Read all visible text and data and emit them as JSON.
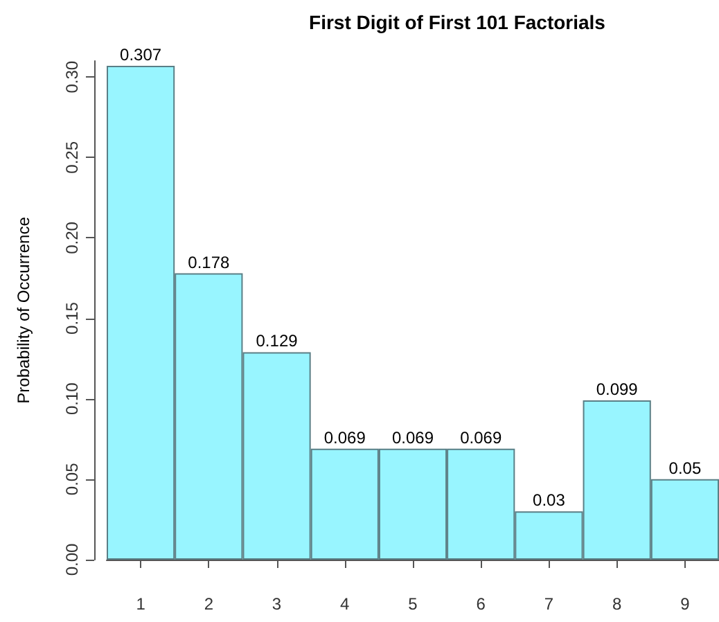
{
  "chart_data": {
    "type": "bar",
    "title": "First Digit of First 101 Factorials",
    "ylabel": "Probability of Occurrence",
    "categories": [
      "1",
      "2",
      "3",
      "4",
      "5",
      "6",
      "7",
      "8",
      "9"
    ],
    "values": [
      0.307,
      0.178,
      0.129,
      0.069,
      0.069,
      0.069,
      0.03,
      0.099,
      0.05
    ],
    "color": "#98f5ff",
    "ylim": [
      0,
      0.31
    ],
    "yticks": [
      {
        "value": 0,
        "label": "0.00"
      },
      {
        "value": 0.05,
        "label": "0.05"
      },
      {
        "value": 0.1,
        "label": "0.10"
      },
      {
        "value": 0.15,
        "label": "0.15"
      },
      {
        "value": 0.2,
        "label": "0.20"
      },
      {
        "value": 0.25,
        "label": "0.25"
      },
      {
        "value": 0.3,
        "label": "0.30"
      }
    ],
    "data_labels": true,
    "grid": false
  }
}
